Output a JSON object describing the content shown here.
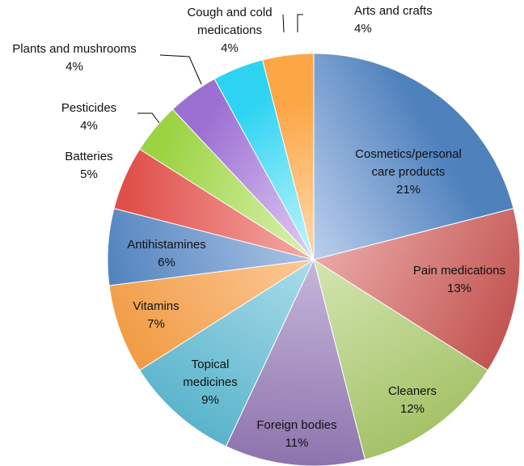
{
  "chart_data": {
    "type": "pie",
    "title": "",
    "start_angle_deg": 0,
    "direction": "clockwise",
    "slices": [
      {
        "label_lines": [
          "Cosmetics/personal",
          "care products"
        ],
        "value": 21,
        "value_label": "21%",
        "color": "#4f81bd",
        "light": "#b9cdeb",
        "label_position": "inside"
      },
      {
        "label_lines": [
          "Pain medications"
        ],
        "value": 13,
        "value_label": "13%",
        "color": "#c0504d",
        "light": "#f0b7b5",
        "label_position": "inside"
      },
      {
        "label_lines": [
          "Cleaners"
        ],
        "value": 12,
        "value_label": "12%",
        "color": "#9bbb59",
        "light": "#dbebbd",
        "label_position": "inside"
      },
      {
        "label_lines": [
          "Foreign bodies"
        ],
        "value": 11,
        "value_label": "11%",
        "color": "#8064a2",
        "light": "#cfc0e2",
        "label_position": "inside"
      },
      {
        "label_lines": [
          "Topical",
          "medicines"
        ],
        "value": 9,
        "value_label": "9%",
        "color": "#4bacc6",
        "light": "#b8e3ee",
        "label_position": "inside"
      },
      {
        "label_lines": [
          "Vitamins"
        ],
        "value": 7,
        "value_label": "7%",
        "color": "#f0963b",
        "light": "#fdd2a6",
        "label_position": "inside"
      },
      {
        "label_lines": [
          "Antihistamines"
        ],
        "value": 6,
        "value_label": "6%",
        "color": "#4f81bd",
        "light": "#b9cdeb",
        "label_position": "inside"
      },
      {
        "label_lines": [
          "Batteries"
        ],
        "value": 5,
        "value_label": "5%",
        "color": "#e04e49",
        "light": "#f6b3b0",
        "label_position": "outside"
      },
      {
        "label_lines": [
          "Pesticides"
        ],
        "value": 4,
        "value_label": "4%",
        "color": "#9bd342",
        "light": "#dff3b8",
        "label_position": "outside"
      },
      {
        "label_lines": [
          "Plants and mushrooms"
        ],
        "value": 4,
        "value_label": "4%",
        "color": "#9c6fd2",
        "light": "#ddc9f2",
        "label_position": "outside"
      },
      {
        "label_lines": [
          "Cough and cold",
          "medications"
        ],
        "value": 4,
        "value_label": "4%",
        "color": "#2ed3f2",
        "light": "#b2f1fc",
        "label_position": "outside"
      },
      {
        "label_lines": [
          "Arts and crafts"
        ],
        "value": 4,
        "value_label": "4%",
        "color": "#fca646",
        "light": "#ffd09a",
        "label_position": "outside"
      }
    ]
  }
}
